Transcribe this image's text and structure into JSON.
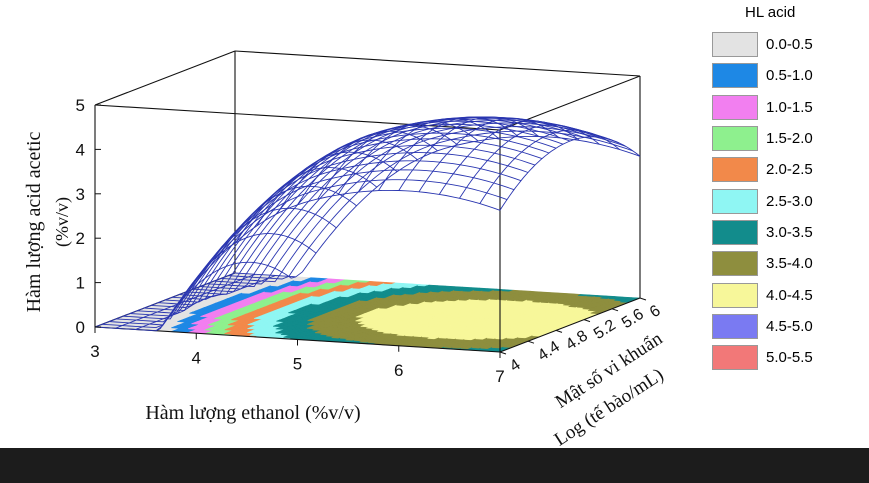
{
  "chart_data": {
    "type": "surface3d",
    "zlabel_line1": "Hàm lượng  acid acetic",
    "zlabel_line2": "(%v/v)",
    "xlabel": "Hàm lượng ethanol (%v/v)",
    "ylabel_line1": "Mật số vi khuẩn",
    "ylabel_line2": "Log (tế bào/mL)",
    "x_ticks": [
      "3",
      "4",
      "5",
      "6",
      "7"
    ],
    "y_ticks": [
      "4",
      "4.4",
      "4.8",
      "5.2",
      "5.6",
      "6"
    ],
    "z_ticks": [
      "0",
      "1",
      "2",
      "3",
      "4",
      "5"
    ],
    "xlim": [
      3,
      7
    ],
    "ylim": [
      4,
      6
    ],
    "zlim": [
      0,
      5
    ],
    "peak": {
      "x": 6.1,
      "y": 5.0,
      "z": 4.45
    },
    "surface_color": "#2a36b0",
    "legend": {
      "title": "HL acid",
      "entries": [
        {
          "label": "0.0-0.5",
          "color": "#e3e3e3"
        },
        {
          "label": "0.5-1.0",
          "color": "#1e88e5"
        },
        {
          "label": "1.0-1.5",
          "color": "#f27ff0"
        },
        {
          "label": "1.5-2.0",
          "color": "#8ef08e"
        },
        {
          "label": "2.0-2.5",
          "color": "#f2894a"
        },
        {
          "label": "2.5-3.0",
          "color": "#8ff6f3"
        },
        {
          "label": "3.0-3.5",
          "color": "#128c8c"
        },
        {
          "label": "3.5-4.0",
          "color": "#8e8e3e"
        },
        {
          "label": "4.0-4.5",
          "color": "#f7f79a"
        },
        {
          "label": "4.5-5.0",
          "color": "#7a7af2"
        },
        {
          "label": "5.0-5.5",
          "color": "#f27878"
        }
      ]
    }
  }
}
